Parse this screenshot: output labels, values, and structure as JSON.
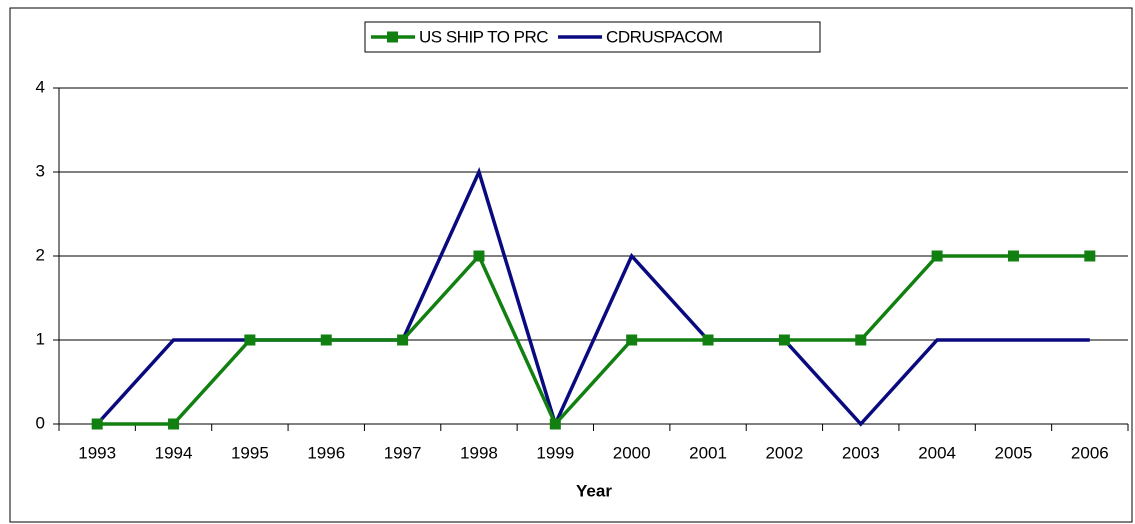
{
  "chart_data": {
    "type": "line",
    "xlabel": "Year",
    "categories": [
      "1993",
      "1994",
      "1995",
      "1996",
      "1997",
      "1998",
      "1999",
      "2000",
      "2001",
      "2002",
      "2003",
      "2004",
      "2005",
      "2006"
    ],
    "series": [
      {
        "name": "US SHIP TO PRC",
        "color": "#118011",
        "marker": "square",
        "values": [
          0,
          0,
          1,
          1,
          1,
          2,
          0,
          1,
          1,
          1,
          1,
          2,
          2,
          2
        ]
      },
      {
        "name": "CDRUSPACOM",
        "color": "#0a0a80",
        "marker": "none",
        "values": [
          0,
          1,
          1,
          1,
          1,
          3,
          0,
          2,
          1,
          1,
          0,
          1,
          1,
          1
        ]
      }
    ],
    "ylim": [
      0,
      4
    ],
    "yticks": [
      0,
      1,
      2,
      3,
      4
    ],
    "grid": true,
    "legend": "top"
  }
}
